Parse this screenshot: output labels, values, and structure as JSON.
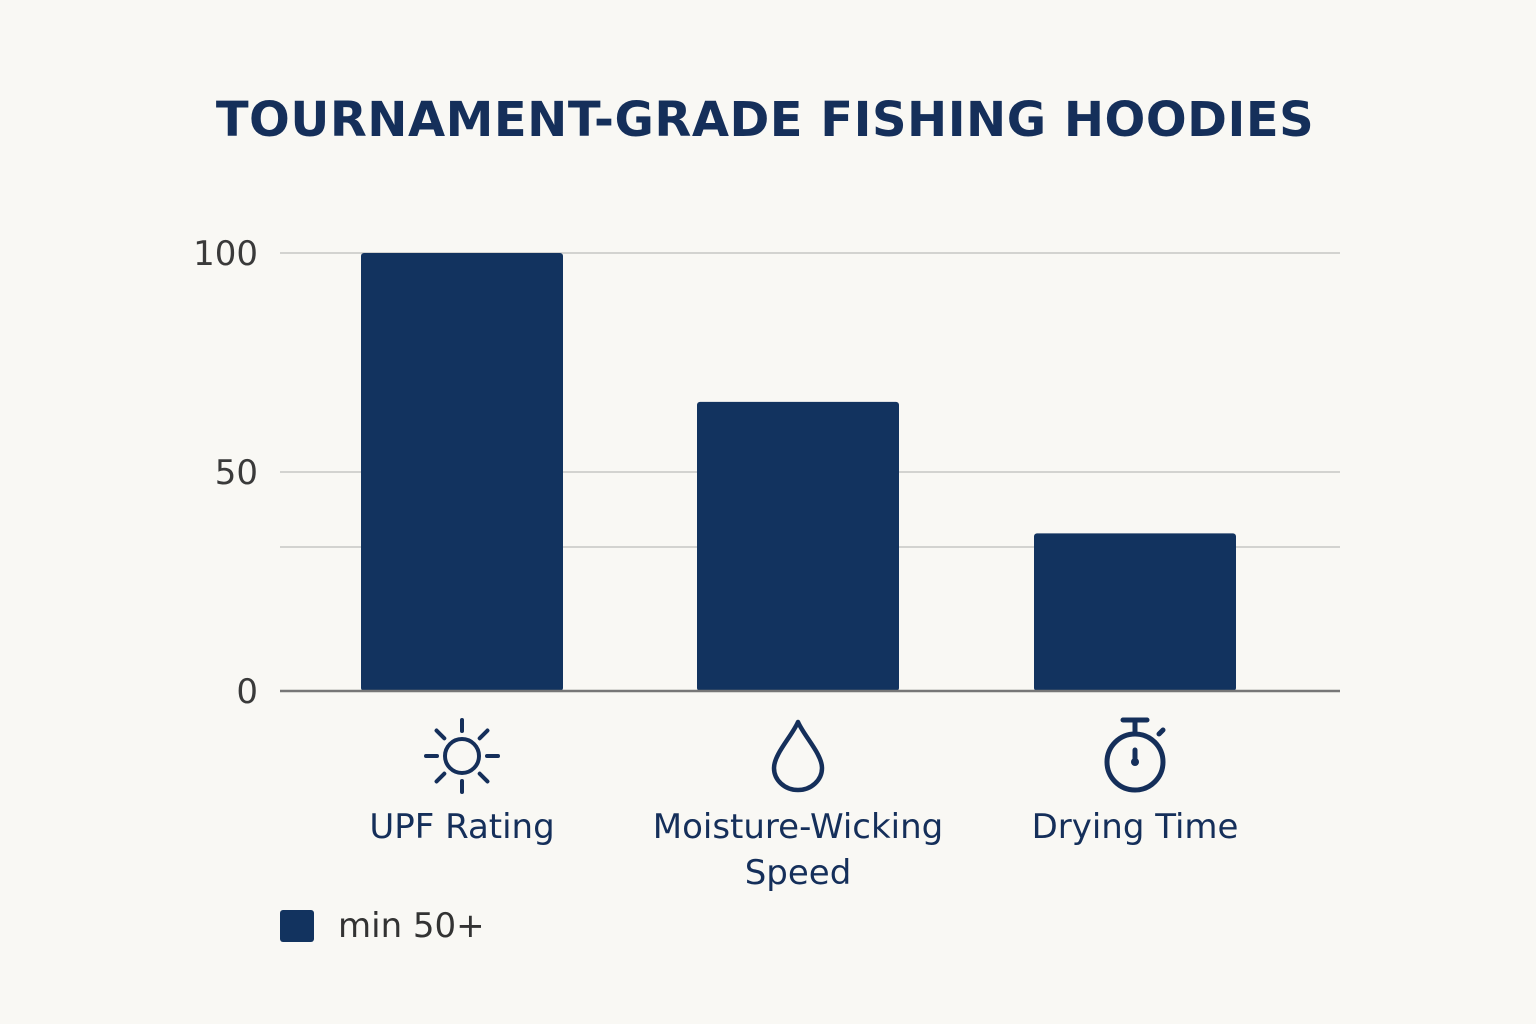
{
  "colors": {
    "bar": "#12335f",
    "icon": "#152f5a",
    "grid": "#d3d3d0",
    "axis": "#777777"
  },
  "chart_data": {
    "type": "bar",
    "title": "TOURNAMENT-GRADE FISHING HOODIES",
    "categories": [
      {
        "lines": [
          "UPF Rating"
        ],
        "icon": "sun-icon"
      },
      {
        "lines": [
          "Moisture-Wicking",
          "Speed"
        ],
        "icon": "water-drop-icon"
      },
      {
        "lines": [
          "Drying Time"
        ],
        "icon": "stopwatch-icon"
      }
    ],
    "values": [
      100,
      66,
      36
    ],
    "ylim": [
      0,
      100
    ],
    "y_ticks": [
      0,
      50,
      100
    ],
    "y_gridlines": [
      0,
      50,
      100
    ],
    "legend": {
      "label": "min 50+",
      "placement": "bottom-left"
    },
    "grid": true
  }
}
